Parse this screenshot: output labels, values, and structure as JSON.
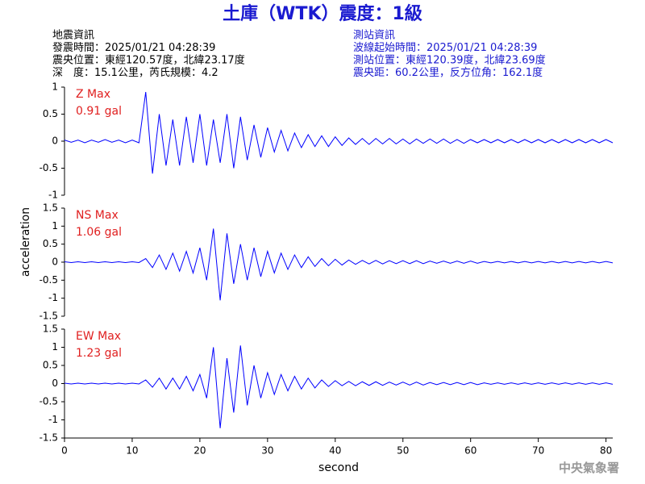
{
  "header": {
    "title": "土庫（WTK）震度：1級",
    "left": [
      "地震資訊",
      "發震時間：2025/01/21 04:28:39",
      "震央位置：東經120.57度，北緯23.17度",
      "深　度：15.1公里，芮氏規模：4.2"
    ],
    "right": [
      "測站資訊",
      "波線起始時間：2025/01/21 04:28:39",
      "測站位置：東經120.39度，北緯23.69度",
      "震央距：60.2公里，反方位角：162.1度"
    ],
    "footer": "中央氣象署"
  },
  "chart_data": [
    {
      "type": "line",
      "label": "Z Max",
      "max_label": "0.91 gal",
      "color": "#0000ff",
      "xlim": [
        0,
        81
      ],
      "ylim": [
        -1,
        1
      ],
      "yticks": [
        -1,
        -0.5,
        0,
        0.5,
        1
      ],
      "x": [
        0,
        1,
        2,
        3,
        4,
        5,
        6,
        7,
        8,
        9,
        10,
        11,
        12,
        13,
        14,
        15,
        16,
        17,
        18,
        19,
        20,
        21,
        22,
        23,
        24,
        25,
        26,
        27,
        28,
        29,
        30,
        31,
        32,
        33,
        34,
        35,
        36,
        37,
        38,
        39,
        40,
        41,
        42,
        43,
        44,
        45,
        46,
        47,
        48,
        49,
        50,
        51,
        52,
        53,
        54,
        55,
        56,
        57,
        58,
        59,
        60,
        61,
        62,
        63,
        64,
        65,
        66,
        67,
        68,
        69,
        70,
        71,
        72,
        73,
        74,
        75,
        76,
        77,
        78,
        79,
        80,
        81
      ],
      "values": [
        0.02,
        -0.02,
        0.02,
        -0.03,
        0.02,
        -0.02,
        0.03,
        -0.02,
        0.02,
        -0.03,
        0.02,
        -0.03,
        0.91,
        -0.6,
        0.5,
        -0.45,
        0.4,
        -0.45,
        0.45,
        -0.4,
        0.5,
        -0.45,
        0.4,
        -0.4,
        0.5,
        -0.5,
        0.45,
        -0.35,
        0.3,
        -0.3,
        0.25,
        -0.2,
        0.2,
        -0.18,
        0.15,
        -0.12,
        0.12,
        -0.1,
        0.1,
        -0.1,
        0.08,
        -0.08,
        0.06,
        -0.06,
        0.05,
        -0.06,
        0.05,
        -0.05,
        0.05,
        -0.05,
        0.04,
        -0.05,
        0.04,
        -0.04,
        0.04,
        -0.04,
        0.04,
        -0.04,
        0.03,
        -0.04,
        0.03,
        -0.03,
        0.03,
        -0.03,
        0.03,
        -0.03,
        0.03,
        -0.03,
        0.03,
        -0.03,
        0.03,
        -0.03,
        0.03,
        -0.03,
        0.03,
        -0.03,
        0.03,
        -0.03,
        0.03,
        -0.03,
        0.03,
        -0.03
      ]
    },
    {
      "type": "line",
      "label": "NS Max",
      "max_label": "1.06 gal",
      "color": "#0000ff",
      "ylabel": "acceleration",
      "xlim": [
        0,
        81
      ],
      "ylim": [
        -1.5,
        1.5
      ],
      "yticks": [
        -1.5,
        -1,
        -0.5,
        0,
        0.5,
        1,
        1.5
      ],
      "x": [
        0,
        1,
        2,
        3,
        4,
        5,
        6,
        7,
        8,
        9,
        10,
        11,
        12,
        13,
        14,
        15,
        16,
        17,
        18,
        19,
        20,
        21,
        22,
        23,
        24,
        25,
        26,
        27,
        28,
        29,
        30,
        31,
        32,
        33,
        34,
        35,
        36,
        37,
        38,
        39,
        40,
        41,
        42,
        43,
        44,
        45,
        46,
        47,
        48,
        49,
        50,
        51,
        52,
        53,
        54,
        55,
        56,
        57,
        58,
        59,
        60,
        61,
        62,
        63,
        64,
        65,
        66,
        67,
        68,
        69,
        70,
        71,
        72,
        73,
        74,
        75,
        76,
        77,
        78,
        79,
        80,
        81
      ],
      "values": [
        0.01,
        -0.01,
        0.01,
        -0.01,
        0.01,
        -0.01,
        0.01,
        -0.01,
        0.01,
        -0.01,
        0.01,
        -0.01,
        0.1,
        -0.15,
        0.2,
        -0.2,
        0.25,
        -0.25,
        0.3,
        -0.3,
        0.4,
        -0.5,
        0.93,
        -1.06,
        0.8,
        -0.6,
        0.5,
        -0.5,
        0.4,
        -0.4,
        0.3,
        -0.3,
        0.25,
        -0.2,
        0.2,
        -0.15,
        0.15,
        -0.12,
        0.1,
        -0.1,
        0.08,
        -0.08,
        0.06,
        -0.06,
        0.05,
        -0.05,
        0.05,
        -0.05,
        0.04,
        -0.04,
        0.04,
        -0.04,
        0.04,
        -0.04,
        0.03,
        -0.03,
        0.03,
        -0.03,
        0.03,
        -0.03,
        0.03,
        -0.03,
        0.02,
        -0.02,
        0.02,
        -0.02,
        0.02,
        -0.02,
        0.02,
        -0.02,
        0.02,
        -0.02,
        0.02,
        -0.02,
        0.02,
        -0.02,
        0.02,
        -0.02,
        0.02,
        -0.02,
        0.02,
        -0.02
      ]
    },
    {
      "type": "line",
      "label": "EW Max",
      "max_label": "1.23 gal",
      "color": "#0000ff",
      "xlabel": "second",
      "xlim": [
        0,
        81
      ],
      "ylim": [
        -1.5,
        1.5
      ],
      "yticks": [
        -1.5,
        -1,
        -0.5,
        0,
        0.5,
        1,
        1.5
      ],
      "xticks": [
        0,
        10,
        20,
        30,
        40,
        50,
        60,
        70,
        80
      ],
      "x": [
        0,
        1,
        2,
        3,
        4,
        5,
        6,
        7,
        8,
        9,
        10,
        11,
        12,
        13,
        14,
        15,
        16,
        17,
        18,
        19,
        20,
        21,
        22,
        23,
        24,
        25,
        26,
        27,
        28,
        29,
        30,
        31,
        32,
        33,
        34,
        35,
        36,
        37,
        38,
        39,
        40,
        41,
        42,
        43,
        44,
        45,
        46,
        47,
        48,
        49,
        50,
        51,
        52,
        53,
        54,
        55,
        56,
        57,
        58,
        59,
        60,
        61,
        62,
        63,
        64,
        65,
        66,
        67,
        68,
        69,
        70,
        71,
        72,
        73,
        74,
        75,
        76,
        77,
        78,
        79,
        80,
        81
      ],
      "values": [
        0.01,
        -0.01,
        0.01,
        -0.01,
        0.01,
        -0.01,
        0.01,
        -0.01,
        0.01,
        -0.01,
        0.01,
        -0.01,
        0.1,
        -0.1,
        0.15,
        -0.15,
        0.15,
        -0.15,
        0.2,
        -0.2,
        0.25,
        -0.4,
        1.0,
        -1.23,
        0.7,
        -0.8,
        1.05,
        -0.6,
        0.5,
        -0.4,
        0.3,
        -0.3,
        0.25,
        -0.2,
        0.2,
        -0.15,
        0.15,
        -0.12,
        0.1,
        -0.08,
        0.08,
        -0.06,
        0.06,
        -0.06,
        0.05,
        -0.05,
        0.05,
        -0.05,
        0.04,
        -0.04,
        0.04,
        -0.04,
        0.04,
        -0.04,
        0.03,
        -0.03,
        0.03,
        -0.03,
        0.03,
        -0.03,
        0.03,
        -0.03,
        0.02,
        -0.02,
        0.02,
        -0.02,
        0.02,
        -0.02,
        0.02,
        -0.02,
        0.02,
        -0.02,
        0.02,
        -0.02,
        0.02,
        -0.02,
        0.02,
        -0.02,
        0.02,
        -0.02,
        0.02,
        -0.02
      ]
    }
  ]
}
